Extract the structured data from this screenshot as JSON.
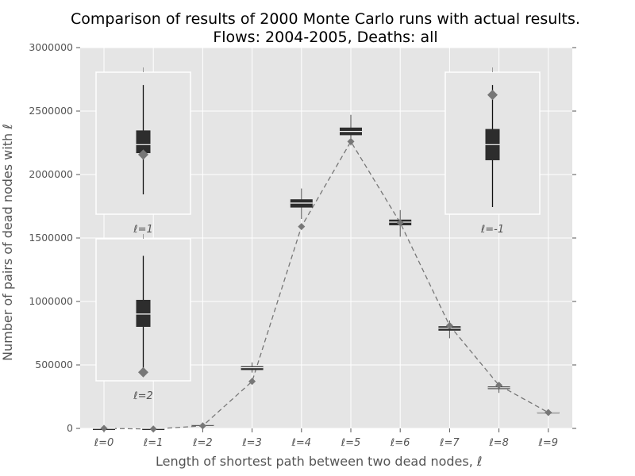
{
  "chart_data": {
    "type": "box",
    "title_line1": "Comparison of results of 2000 Monte Carlo runs with actual results.",
    "title_line2": "Flows: 2004-2005,  Deaths: all",
    "xlabel": "Length of shortest path between two dead nodes, ℓ",
    "ylabel": "Number of pairs of dead nodes with ℓ",
    "ylim": [
      0,
      3000000
    ],
    "yticks": [
      0,
      500000,
      1000000,
      1500000,
      2000000,
      2500000,
      3000000
    ],
    "ytick_labels": [
      "0",
      "500000",
      "1000000",
      "1500000",
      "2000000",
      "2500000",
      "3000000"
    ],
    "categories": [
      "ℓ=0",
      "ℓ=1",
      "ℓ=2",
      "ℓ=3",
      "ℓ=4",
      "ℓ=5",
      "ℓ=6",
      "ℓ=7",
      "ℓ=8",
      "ℓ=9"
    ],
    "simulated_boxes": [
      {
        "q1": 0,
        "median": 0,
        "q3": 0,
        "whislo": 0,
        "whishi": 0
      },
      {
        "q1": 0,
        "median": 0,
        "q3": 0,
        "whislo": 0,
        "whishi": 0
      },
      {
        "q1": 28000,
        "median": 30000,
        "q3": 33000,
        "whislo": 25000,
        "whishi": 37000
      },
      {
        "q1": 460000,
        "median": 478000,
        "q3": 490000,
        "whislo": 440000,
        "whishi": 520000
      },
      {
        "q1": 1740000,
        "median": 1775000,
        "q3": 1805000,
        "whislo": 1650000,
        "whishi": 1890000
      },
      {
        "q1": 2310000,
        "median": 2340000,
        "q3": 2370000,
        "whislo": 2230000,
        "whishi": 2470000
      },
      {
        "q1": 1600000,
        "median": 1625000,
        "q3": 1645000,
        "whislo": 1510000,
        "whishi": 1720000
      },
      {
        "q1": 770000,
        "median": 790000,
        "q3": 805000,
        "whislo": 710000,
        "whishi": 850000
      },
      {
        "q1": 310000,
        "median": 320000,
        "q3": 330000,
        "whislo": 280000,
        "whishi": 350000
      },
      {
        "q1": 120000,
        "median": 125000,
        "q3": 130000,
        "whislo": 110000,
        "whishi": 140000
      }
    ],
    "actual_values": [
      0,
      -5000,
      20000,
      370000,
      1590000,
      2260000,
      1620000,
      810000,
      340000,
      125000
    ],
    "insets": [
      {
        "label": "ℓ=1",
        "ylim": [
          0,
          1
        ],
        "box": {
          "whislo": 0.14,
          "q1": 0.43,
          "median": 0.49,
          "q3": 0.59,
          "whishi": 0.91
        },
        "actual": 0.42
      },
      {
        "label": "ℓ=-1",
        "ylim": [
          0,
          1
        ],
        "box": {
          "whislo": 0.05,
          "q1": 0.38,
          "median": 0.49,
          "q3": 0.6,
          "whishi": 0.91
        },
        "actual": 0.84
      },
      {
        "label": "ℓ=2",
        "ylim": [
          0,
          1
        ],
        "box": {
          "whislo": 0.07,
          "q1": 0.38,
          "median": 0.47,
          "q3": 0.57,
          "whishi": 0.88
        },
        "actual": 0.06
      }
    ]
  }
}
